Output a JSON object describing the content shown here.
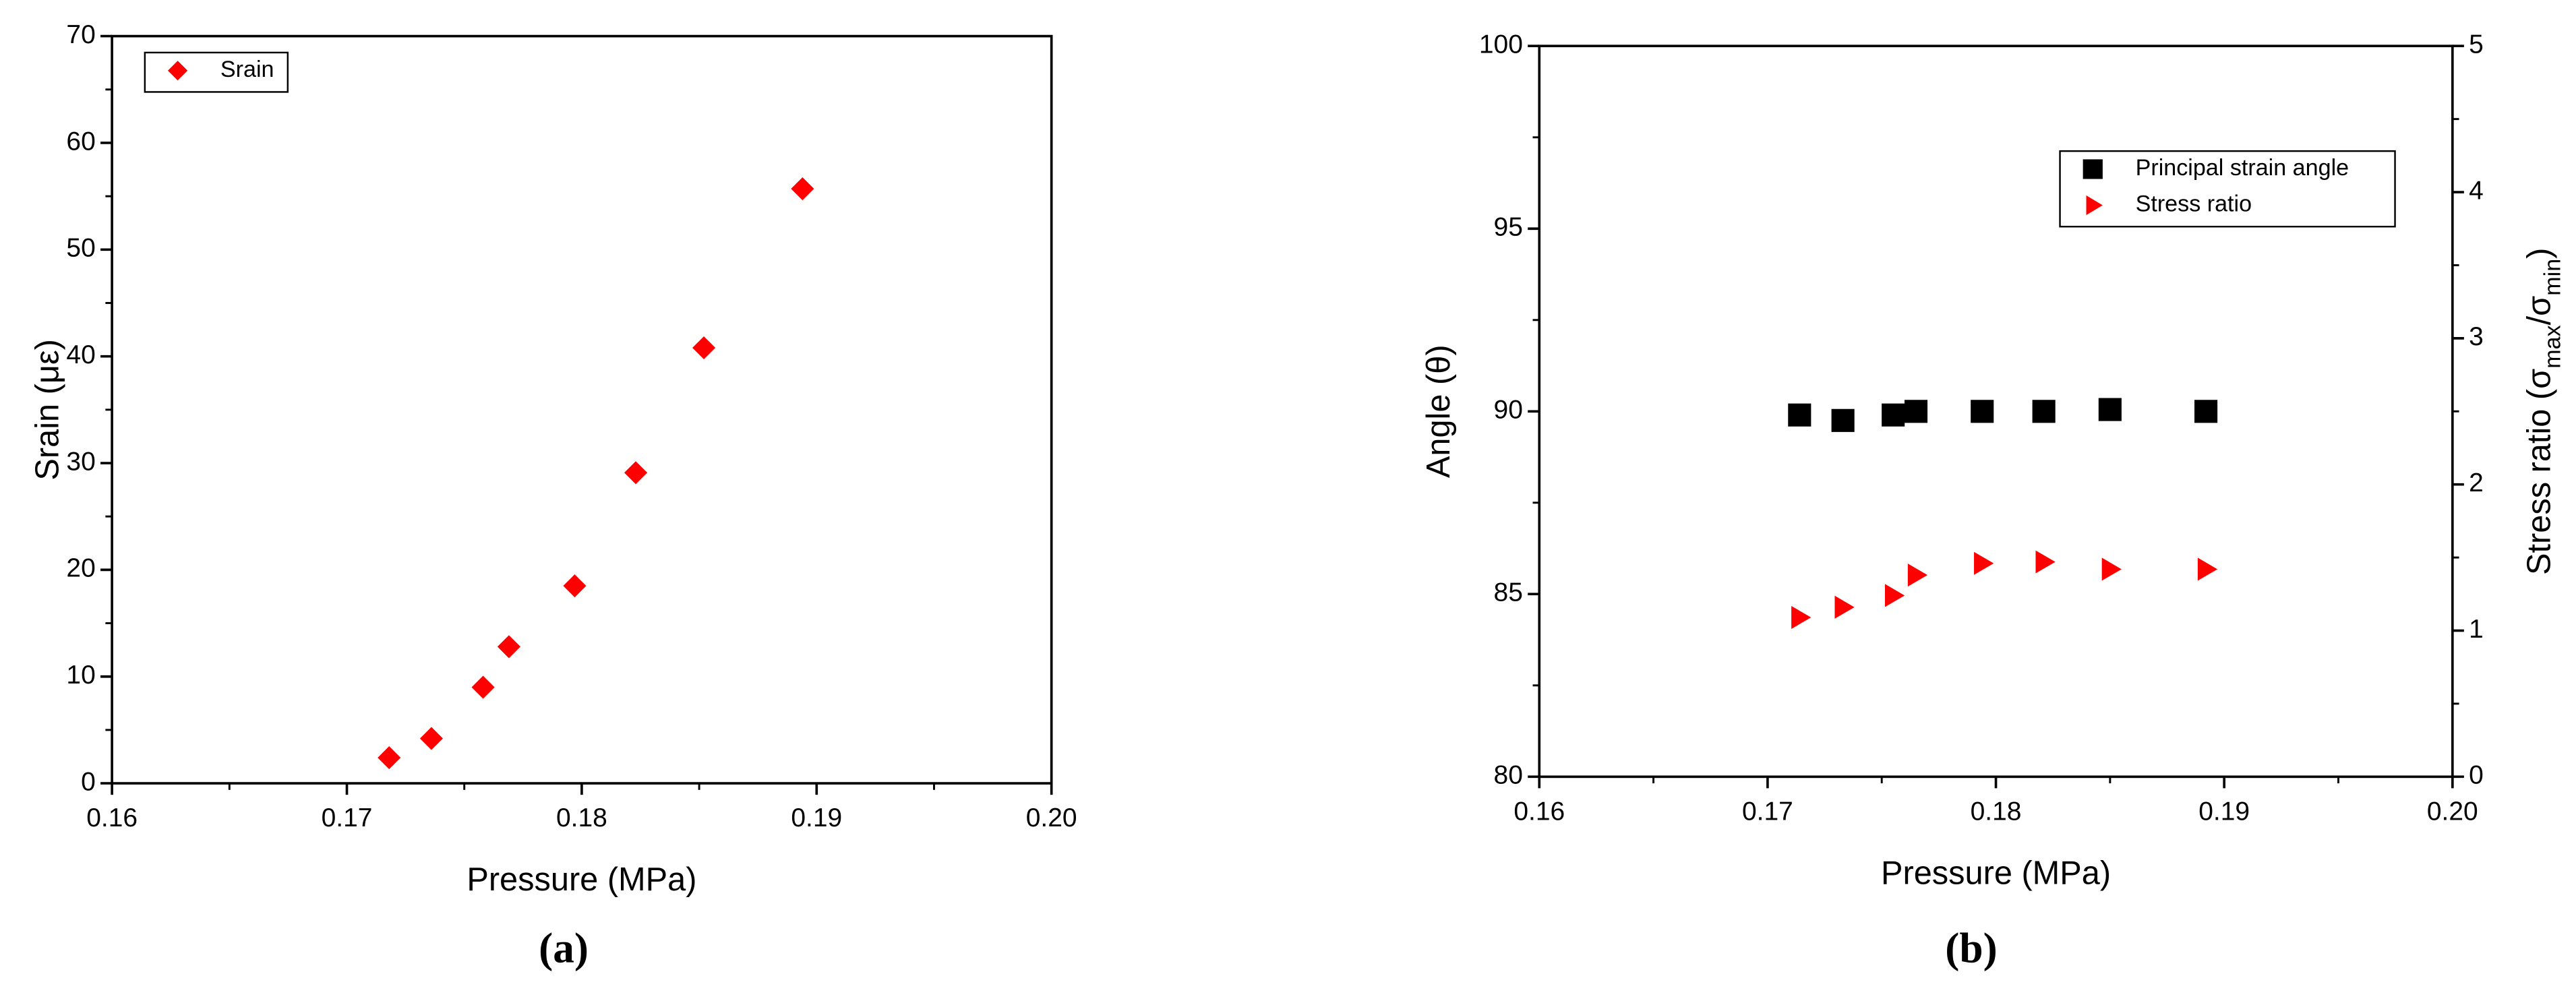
{
  "chart_data": [
    {
      "type": "scatter",
      "caption": "(a)",
      "xlabel": "Pressure (MPa)",
      "ylabel": "Srain (με)",
      "xlim": [
        0.16,
        0.2
      ],
      "xticks": [
        0.16,
        0.17,
        0.18,
        0.19,
        {
          "value": 0.2,
          "label": "0.20"
        }
      ],
      "ylim": [
        0,
        70
      ],
      "yticks": [
        0,
        10,
        20,
        30,
        40,
        50,
        60,
        70
      ],
      "legend": "upper left",
      "series": [
        {
          "name": "Srain",
          "color": "#ff0000",
          "marker": "diamond",
          "x": [
            0.1718,
            0.1736,
            0.1758,
            0.1769,
            0.1797,
            0.1823,
            0.1852,
            0.1894
          ],
          "values": [
            2.4,
            4.2,
            9.0,
            12.8,
            18.5,
            29.1,
            40.8,
            55.7
          ]
        }
      ]
    },
    {
      "type": "scatter",
      "caption": "(b)",
      "xlabel": "Pressure (MPa)",
      "ylabel": "Angle (θ)",
      "y2label": [
        "Stress ratio (σ",
        "max",
        "/σ",
        "min",
        ")"
      ],
      "xlim": [
        0.16,
        0.2
      ],
      "xticks": [
        0.16,
        0.17,
        0.18,
        0.19,
        {
          "value": 0.2,
          "label": "0.20"
        }
      ],
      "ylim": [
        80,
        100
      ],
      "yticks": [
        80,
        85,
        90,
        95,
        100
      ],
      "y2lim": [
        0,
        5
      ],
      "y2ticks": [
        0,
        1,
        2,
        3,
        4,
        5
      ],
      "legend": "upper right",
      "series": [
        {
          "name": "Principal strain angle",
          "color": "#000000",
          "marker": "square",
          "x": [
            0.1714,
            0.1733,
            0.1755,
            0.1765,
            0.1794,
            0.1821,
            0.185,
            0.1892
          ],
          "values": [
            89.9,
            89.75,
            89.9,
            90.0,
            90.0,
            90.0,
            90.05,
            90.0
          ]
        },
        {
          "name": "Stress ratio",
          "color": "#ff0000",
          "marker": "triangle-right",
          "axis": "y2",
          "x": [
            0.1714,
            0.1733,
            0.1755,
            0.1765,
            0.1794,
            0.1821,
            0.185,
            0.1892
          ],
          "values": [
            1.09,
            1.16,
            1.24,
            1.38,
            1.46,
            1.47,
            1.42,
            1.42
          ]
        }
      ]
    }
  ]
}
